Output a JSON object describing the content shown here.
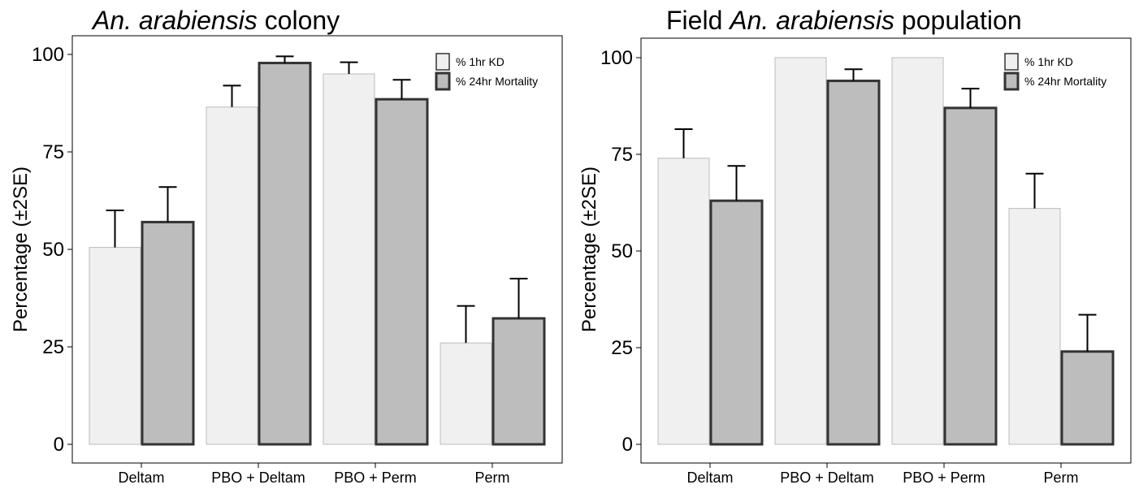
{
  "chart_data": [
    {
      "type": "bar",
      "title_parts": [
        {
          "text": "An. arabiensis",
          "italic": true
        },
        {
          "text": " colony",
          "italic": false
        }
      ],
      "ylabel": "Percentage (±2SE)",
      "categories": [
        "Deltam",
        "PBO + Deltam",
        "PBO + Perm",
        "Perm"
      ],
      "ylim": [
        0,
        100
      ],
      "yticks": [
        0,
        25,
        50,
        75,
        100
      ],
      "legend_position": "top-right",
      "series": [
        {
          "name": "% 1hr KD",
          "color": "#f0f0f0",
          "values": [
            50.5,
            86.5,
            95.0,
            26.0
          ],
          "err_upper": [
            60.0,
            92.0,
            98.0,
            35.5
          ]
        },
        {
          "name": "% 24hr Mortality",
          "color": "#bdbdbd",
          "values": [
            57.0,
            97.8,
            88.5,
            32.3
          ],
          "err_upper": [
            66.0,
            99.5,
            93.5,
            42.5
          ]
        }
      ]
    },
    {
      "type": "bar",
      "title_parts": [
        {
          "text": "Field ",
          "italic": false
        },
        {
          "text": "An. arabiensis",
          "italic": true
        },
        {
          "text": " population",
          "italic": false
        }
      ],
      "ylabel": "Percentage (±2SE)",
      "categories": [
        "Deltam",
        "PBO + Deltam",
        "PBO + Perm",
        "Perm"
      ],
      "ylim": [
        0,
        100
      ],
      "yticks": [
        0,
        25,
        50,
        75,
        100
      ],
      "legend_position": "top-right",
      "series": [
        {
          "name": "% 1hr KD",
          "color": "#f0f0f0",
          "values": [
            74.0,
            100.0,
            100.0,
            61.0
          ],
          "err_upper": [
            81.5,
            null,
            null,
            70.0
          ]
        },
        {
          "name": "% 24hr Mortality",
          "color": "#bdbdbd",
          "values": [
            63.0,
            94.0,
            87.0,
            24.0
          ],
          "err_upper": [
            72.0,
            97.0,
            92.0,
            33.5
          ]
        }
      ]
    }
  ]
}
